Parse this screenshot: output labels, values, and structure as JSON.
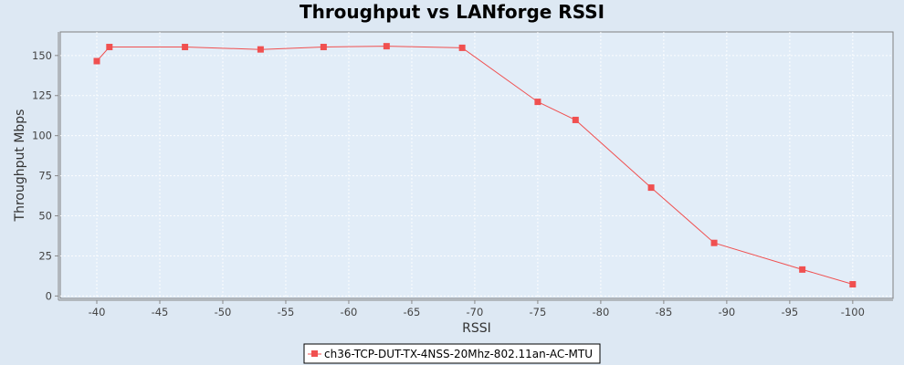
{
  "chart_data": {
    "type": "line",
    "title": "Throughput vs LANforge RSSI",
    "xlabel": "RSSI",
    "ylabel": "Throughput Mbps",
    "xlim": [
      -37.1,
      -103.2
    ],
    "ylim": [
      -1.5,
      164.7
    ],
    "x_ticks": [
      -40,
      -45,
      -50,
      -55,
      -60,
      -65,
      -70,
      -75,
      -80,
      -85,
      -90,
      -95,
      -100
    ],
    "y_ticks": [
      0,
      25,
      50,
      75,
      100,
      125,
      150
    ],
    "grid": true,
    "legend": "bottom",
    "series": [
      {
        "name": "ch36-TCP-DUT-TX-4NSS-20Mhz-802.11an-AC-MTU",
        "color": "#f05050",
        "marker": "square",
        "x": [
          -40,
          -41,
          -47,
          -53,
          -58,
          -63,
          -69,
          -75,
          -78,
          -84,
          -89,
          -96,
          -100
        ],
        "y": [
          146.5,
          155.3,
          155.3,
          153.8,
          155.3,
          155.8,
          154.8,
          121.1,
          109.8,
          67.6,
          33.1,
          16.5,
          7.3
        ]
      }
    ]
  }
}
